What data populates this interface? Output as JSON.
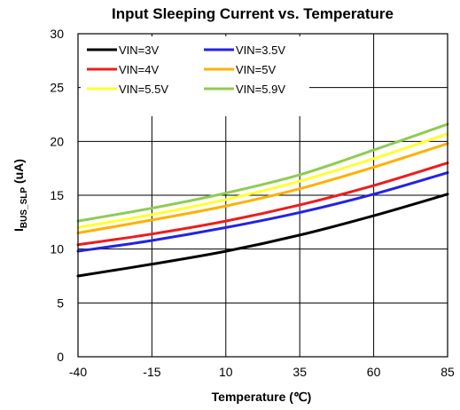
{
  "chart_data": {
    "type": "line",
    "title": "Input Sleeping Current  vs. Temperature",
    "xlabel": "Temperature (℃)",
    "ylabel_main": "I",
    "ylabel_sub": "BUS_SLP",
    "ylabel_unit": " (uA)",
    "x_ticks": [
      -40,
      -15,
      10,
      35,
      60,
      85
    ],
    "y_ticks": [
      0,
      5,
      10,
      15,
      20,
      25,
      30
    ],
    "xlim": [
      -40,
      85
    ],
    "ylim": [
      0,
      30
    ],
    "grid": true,
    "legend_position": "top-left",
    "series": [
      {
        "name": "VIN=3V",
        "color": "#000000",
        "x": [
          -40,
          -15,
          10,
          35,
          60,
          85
        ],
        "y": [
          7.5,
          8.6,
          9.8,
          11.3,
          13.1,
          15.1
        ]
      },
      {
        "name": "VIN=3.5V",
        "color": "#2323e6",
        "x": [
          -40,
          -15,
          10,
          35,
          60,
          85
        ],
        "y": [
          9.8,
          10.8,
          12.0,
          13.4,
          15.1,
          17.1
        ]
      },
      {
        "name": "VIN=4V",
        "color": "#ee1c1c",
        "x": [
          -40,
          -15,
          10,
          35,
          60,
          85
        ],
        "y": [
          10.4,
          11.4,
          12.6,
          14.1,
          15.9,
          18.0
        ]
      },
      {
        "name": "VIN=5V",
        "color": "#ffb000",
        "x": [
          -40,
          -15,
          10,
          35,
          60,
          85
        ],
        "y": [
          11.5,
          12.7,
          14.0,
          15.6,
          17.6,
          19.8
        ]
      },
      {
        "name": "VIN=5.5V",
        "color": "#ffff30",
        "x": [
          -40,
          -15,
          10,
          35,
          60,
          85
        ],
        "y": [
          12.0,
          13.2,
          14.6,
          16.3,
          18.4,
          20.7
        ]
      },
      {
        "name": "VIN=5.9V",
        "color": "#8fcc50",
        "x": [
          -40,
          -15,
          10,
          35,
          60,
          85
        ],
        "y": [
          12.6,
          13.8,
          15.2,
          16.9,
          19.2,
          21.6
        ]
      }
    ]
  }
}
